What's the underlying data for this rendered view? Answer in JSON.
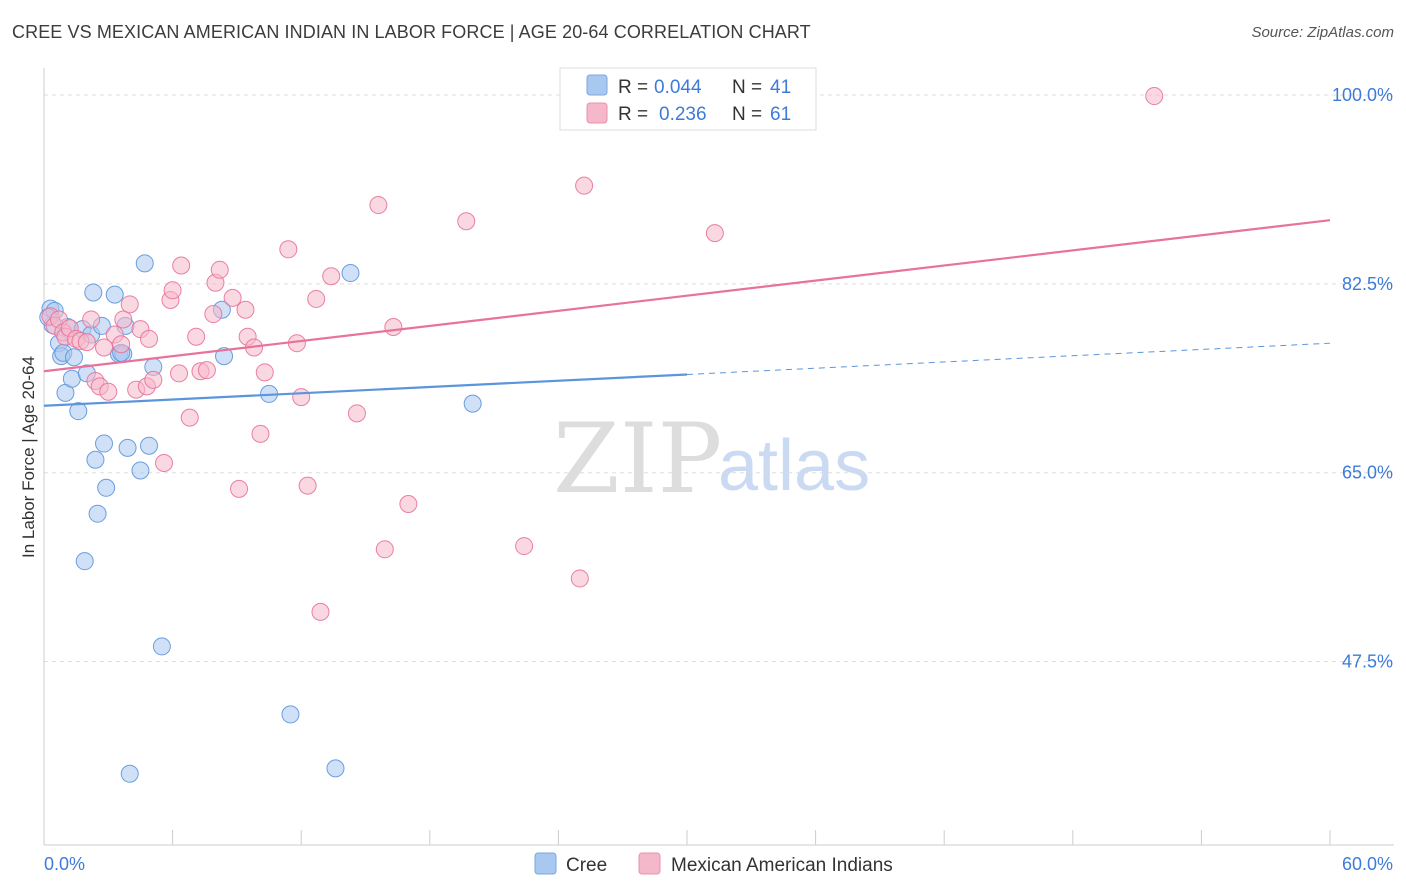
{
  "title": "CREE VS MEXICAN AMERICAN INDIAN IN LABOR FORCE | AGE 20-64 CORRELATION CHART",
  "source": "Source: ZipAtlas.com",
  "watermark": {
    "zip": "ZIP",
    "atlas": "atlas"
  },
  "legend_top": {
    "rows": [
      {
        "r_label": "R =",
        "r_value": "0.044",
        "n_label": "N =",
        "n_value": "41",
        "color": "#a9c8f0"
      },
      {
        "r_label": "R =",
        "r_value": "0.236",
        "n_label": "N =",
        "n_value": "61",
        "color": "#f5b8cb"
      }
    ]
  },
  "legend_bottom": [
    {
      "label": "Cree",
      "color": "#a9c8f0"
    },
    {
      "label": "Mexican American Indians",
      "color": "#f5b8cb"
    }
  ],
  "chart_data": {
    "type": "scatter",
    "title": "CREE VS MEXICAN AMERICAN INDIAN IN LABOR FORCE | AGE 20-64 CORRELATION CHART",
    "xlabel": "",
    "ylabel": "In Labor Force | Age 20-64",
    "xlim": [
      0,
      60
    ],
    "ylim": [
      30.5,
      102.5
    ],
    "x_tick_labels": [
      "0.0%",
      "60.0%"
    ],
    "y_ticks": [
      47.5,
      65.0,
      82.5,
      100.0
    ],
    "y_tick_labels": [
      "47.5%",
      "65.0%",
      "82.5%",
      "100.0%"
    ],
    "grid": true,
    "series": [
      {
        "name": "Cree",
        "color": "#5b95dc",
        "fill": "#a9c8f0",
        "trend": {
          "x0": 0,
          "y0": 71.2,
          "x1": 30,
          "y1": 74.1,
          "dashed_to_x": 60,
          "dashed_to_y": 77.0
        },
        "points": [
          [
            0.3,
            80.2
          ],
          [
            0.4,
            78.7
          ],
          [
            0.5,
            80.0
          ],
          [
            0.7,
            77.0
          ],
          [
            0.8,
            75.8
          ],
          [
            0.9,
            76.1
          ],
          [
            1.0,
            72.4
          ],
          [
            1.1,
            78.5
          ],
          [
            1.3,
            73.7
          ],
          [
            1.4,
            75.7
          ],
          [
            1.6,
            70.7
          ],
          [
            1.8,
            78.3
          ],
          [
            1.9,
            56.8
          ],
          [
            2.0,
            74.2
          ],
          [
            2.2,
            77.8
          ],
          [
            2.3,
            81.7
          ],
          [
            2.4,
            66.2
          ],
          [
            2.5,
            61.2
          ],
          [
            2.7,
            78.6
          ],
          [
            2.8,
            67.7
          ],
          [
            2.9,
            63.6
          ],
          [
            3.3,
            81.5
          ],
          [
            3.5,
            76.0
          ],
          [
            3.7,
            76.0
          ],
          [
            3.8,
            78.6
          ],
          [
            3.9,
            67.3
          ],
          [
            4.0,
            37.1
          ],
          [
            4.5,
            65.2
          ],
          [
            4.7,
            84.4
          ],
          [
            4.9,
            67.5
          ],
          [
            5.1,
            74.8
          ],
          [
            5.5,
            48.9
          ],
          [
            8.3,
            80.1
          ],
          [
            8.4,
            75.8
          ],
          [
            10.5,
            72.3
          ],
          [
            11.5,
            42.6
          ],
          [
            13.6,
            37.6
          ],
          [
            14.3,
            83.5
          ],
          [
            20.0,
            71.4
          ],
          [
            0.2,
            79.4
          ],
          [
            3.6,
            76.1
          ]
        ]
      },
      {
        "name": "Mexican American Indians",
        "color": "#e8729a",
        "fill": "#f5b8cb",
        "trend": {
          "x0": 0,
          "y0": 74.4,
          "x1": 60,
          "y1": 88.4
        },
        "points": [
          [
            0.3,
            79.5
          ],
          [
            0.5,
            78.6
          ],
          [
            0.7,
            79.2
          ],
          [
            0.9,
            78.0
          ],
          [
            1.0,
            77.6
          ],
          [
            1.2,
            78.4
          ],
          [
            1.5,
            77.4
          ],
          [
            1.7,
            77.2
          ],
          [
            2.0,
            77.1
          ],
          [
            2.2,
            79.2
          ],
          [
            2.4,
            73.5
          ],
          [
            2.6,
            73.0
          ],
          [
            2.8,
            76.6
          ],
          [
            3.0,
            72.5
          ],
          [
            3.3,
            77.8
          ],
          [
            3.6,
            76.9
          ],
          [
            3.7,
            79.2
          ],
          [
            4.0,
            80.6
          ],
          [
            4.3,
            72.7
          ],
          [
            4.5,
            78.3
          ],
          [
            4.8,
            73.0
          ],
          [
            4.9,
            77.4
          ],
          [
            5.1,
            73.6
          ],
          [
            5.6,
            65.9
          ],
          [
            5.9,
            81.0
          ],
          [
            6.0,
            81.9
          ],
          [
            6.3,
            74.2
          ],
          [
            6.4,
            84.2
          ],
          [
            6.8,
            70.1
          ],
          [
            7.1,
            77.6
          ],
          [
            7.3,
            74.4
          ],
          [
            7.6,
            74.5
          ],
          [
            7.9,
            79.7
          ],
          [
            8.0,
            82.6
          ],
          [
            8.2,
            83.8
          ],
          [
            8.8,
            81.2
          ],
          [
            9.1,
            63.5
          ],
          [
            9.4,
            80.1
          ],
          [
            9.5,
            77.6
          ],
          [
            9.8,
            76.6
          ],
          [
            10.1,
            68.6
          ],
          [
            10.3,
            74.3
          ],
          [
            11.4,
            85.7
          ],
          [
            11.8,
            77.0
          ],
          [
            12.0,
            72.0
          ],
          [
            12.3,
            63.8
          ],
          [
            12.7,
            81.1
          ],
          [
            12.9,
            52.1
          ],
          [
            13.4,
            83.2
          ],
          [
            14.6,
            70.5
          ],
          [
            15.6,
            89.8
          ],
          [
            15.9,
            57.9
          ],
          [
            16.3,
            78.5
          ],
          [
            17.0,
            62.1
          ],
          [
            19.7,
            88.3
          ],
          [
            22.4,
            58.2
          ],
          [
            25.0,
            55.2
          ],
          [
            25.2,
            91.6
          ],
          [
            28.5,
            99.8
          ],
          [
            31.3,
            87.2
          ],
          [
            51.8,
            99.9
          ]
        ]
      }
    ]
  }
}
